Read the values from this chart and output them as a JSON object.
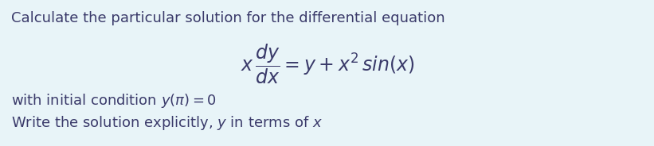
{
  "background_color": "#e8f4f8",
  "text_color": "#3a3a6a",
  "font_size_main": 13.0,
  "font_size_eq": 17.0,
  "line1": "Calculate the particular solution for the differential equation",
  "line3_plain": "with initial condition ",
  "line3_math": "$y(\\pi) = 0$",
  "line4_plain": "Write the solution explicitly, ",
  "line4_math": "$y$",
  "line4_rest": " in terms of ",
  "line4_end": "$x$"
}
